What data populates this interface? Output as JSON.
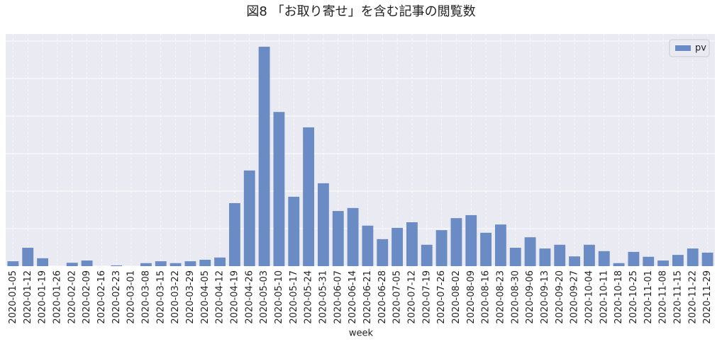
{
  "chart_data": {
    "type": "bar",
    "title": "図8 「お取り寄せ」を含む記事の閲覧数",
    "x_label": "week",
    "categories": [
      "2020-01-05",
      "2020-01-12",
      "2020-01-19",
      "2020-01-26",
      "2020-02-02",
      "2020-02-09",
      "2020-02-16",
      "2020-02-23",
      "2020-03-01",
      "2020-03-08",
      "2020-03-15",
      "2020-03-22",
      "2020-03-29",
      "2020-04-05",
      "2020-04-12",
      "2020-04-19",
      "2020-04-26",
      "2020-05-03",
      "2020-05-10",
      "2020-05-17",
      "2020-05-24",
      "2020-05-31",
      "2020-06-07",
      "2020-06-14",
      "2020-06-21",
      "2020-06-28",
      "2020-07-05",
      "2020-07-12",
      "2020-07-19",
      "2020-07-26",
      "2020-08-02",
      "2020-08-09",
      "2020-08-16",
      "2020-08-23",
      "2020-08-30",
      "2020-09-06",
      "2020-09-13",
      "2020-09-20",
      "2020-09-27",
      "2020-10-04",
      "2020-10-11",
      "2020-10-18",
      "2020-10-25",
      "2020-11-01",
      "2020-11-08",
      "2020-11-15",
      "2020-11-22",
      "2020-11-29"
    ],
    "series": [
      {
        "name": "pv",
        "color": "#6a8bc3",
        "values": [
          0.13,
          0.49,
          0.21,
          0,
          0.09,
          0.15,
          0,
          0.02,
          0,
          0.08,
          0.13,
          0.08,
          0.13,
          0.17,
          0.23,
          1.68,
          2.55,
          5.85,
          4.11,
          1.85,
          3.7,
          2.21,
          1.47,
          1.55,
          1.08,
          0.72,
          1.02,
          1.17,
          0.57,
          0.96,
          1.28,
          1.36,
          0.89,
          1.11,
          0.49,
          0.77,
          0.47,
          0.57,
          0.26,
          0.57,
          0.4,
          0.08,
          0.38,
          0.25,
          0.15,
          0.3,
          0.47,
          0.36
        ]
      }
    ],
    "ylim": [
      0,
      6.19
    ],
    "grid": true,
    "legend": "upper right"
  }
}
